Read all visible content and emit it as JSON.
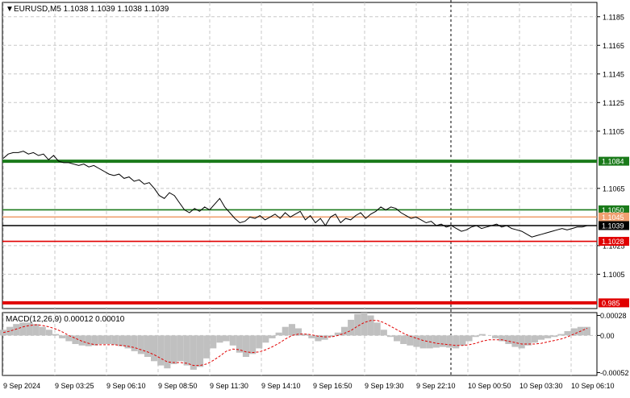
{
  "header": {
    "symbol_line": "EURUSD,M5  1.1038 1.1039 1.1038 1.1039"
  },
  "macd_header": "MACD(12,26,9) 0.00012 0.00010",
  "colors": {
    "background": "#ffffff",
    "grid": "#c8c8c8",
    "price_line": "#000000",
    "green_level": "#1a7a1a",
    "red_level": "#e00000",
    "macd_hist": "#c0c0c0",
    "macd_signal": "#e00000",
    "orange_level": "#f0a070"
  },
  "chart_data": [
    {
      "type": "line",
      "title": "EURUSD,M5",
      "y_ticks": [
        "1.1185",
        "1.1165",
        "1.1145",
        "1.1125",
        "1.1105",
        "1.1065",
        "1.1025",
        "1.1005"
      ],
      "x_ticks": [
        "9 Sep 2024",
        "9 Sep 03:25",
        "9 Sep 06:10",
        "9 Sep 08:50",
        "9 Sep 11:30",
        "9 Sep 14:10",
        "9 Sep 16:50",
        "9 Sep 19:30",
        "9 Sep 22:10",
        "10 Sep 00:50",
        "10 Sep 03:30",
        "10 Sep 06:10"
      ],
      "ylim": [
        1.0981,
        1.1195
      ],
      "levels": [
        {
          "label": "1.1084",
          "value": 1.1084,
          "color": "#1a7a1a",
          "thick": true
        },
        {
          "label": "1.1050",
          "value": 1.105,
          "color": "#1a7a1a",
          "thick": false
        },
        {
          "label": "1.1045",
          "value": 1.1045,
          "color": "#f0a070",
          "thick": false
        },
        {
          "label": "1.1039",
          "value": 1.1039,
          "color": "#000000",
          "thick": false
        },
        {
          "label": "1.1028",
          "value": 1.1028,
          "color": "#e00000",
          "thick": false
        },
        {
          "label": "0.985",
          "value": 1.0985,
          "color": "#e00000",
          "thick": true
        }
      ],
      "series": [
        {
          "values": [
            1.1086,
            1.1089,
            1.109,
            1.109,
            1.1091,
            1.1089,
            1.109,
            1.1088,
            1.1089,
            1.1085,
            1.1088,
            1.1084,
            1.1083,
            1.1083,
            1.1082,
            1.1081,
            1.1082,
            1.108,
            1.1081,
            1.1079,
            1.1077,
            1.1075,
            1.1074,
            1.1075,
            1.1072,
            1.1073,
            1.107,
            1.1071,
            1.1068,
            1.1069,
            1.1065,
            1.106,
            1.1058,
            1.1062,
            1.106,
            1.1055,
            1.105,
            1.1048,
            1.1051,
            1.1049,
            1.1052,
            1.105,
            1.1054,
            1.1058,
            1.1052,
            1.1048,
            1.1044,
            1.1041,
            1.1042,
            1.1045,
            1.1044,
            1.1046,
            1.1043,
            1.1045,
            1.1047,
            1.1044,
            1.1048,
            1.1045,
            1.1047,
            1.1049,
            1.1043,
            1.1046,
            1.1041,
            1.1044,
            1.1039,
            1.1045,
            1.1047,
            1.1041,
            1.1044,
            1.1043,
            1.1046,
            1.1048,
            1.1044,
            1.1047,
            1.1049,
            1.1052,
            1.105,
            1.1052,
            1.1051,
            1.1048,
            1.1046,
            1.1044,
            1.1045,
            1.1043,
            1.1041,
            1.1042,
            1.1039,
            1.104,
            1.1038,
            1.1039,
            1.1037,
            1.1035,
            1.1036,
            1.1038,
            1.1039,
            1.1037,
            1.1038,
            1.1039,
            1.104,
            1.1038,
            1.1039,
            1.1037,
            1.1036,
            1.1035,
            1.1033,
            1.1031,
            1.1032,
            1.1033,
            1.1034,
            1.1035,
            1.1036,
            1.1037,
            1.1036,
            1.1037,
            1.1038,
            1.1038,
            1.1039
          ]
        }
      ]
    },
    {
      "type": "bar",
      "title": "MACD(12,26,9)",
      "y_ticks": [
        "0.00028",
        "0.00",
        "-0.00052"
      ],
      "ylim": [
        -0.00056,
        0.00032
      ],
      "series": [
        {
          "name": "MACD",
          "values": [
            8e-05,
            0.00012,
            0.00016,
            0.00018,
            0.00018,
            0.00016,
            0.00012,
            8e-05,
            2e-05,
            -4e-05,
            -8e-05,
            -0.00012,
            -0.00014,
            -0.00015,
            -0.00014,
            -0.00012,
            -0.00012,
            -0.00013,
            -0.00015,
            -0.00018,
            -0.00022,
            -0.00026,
            -0.0003,
            -0.00036,
            -0.00042,
            -0.00046,
            -0.0004,
            -0.00036,
            -0.00042,
            -0.00048,
            -0.00044,
            -0.00032,
            -0.00018,
            -0.0001,
            -8e-05,
            -0.00014,
            -0.00024,
            -0.0003,
            -0.00026,
            -0.00018,
            -0.0001,
            -4e-05,
            4e-05,
            0.00012,
            0.00016,
            0.0001,
            2e-05,
            -4e-05,
            -8e-05,
            -6e-05,
            -2e-05,
            4e-05,
            0.00012,
            0.00022,
            0.0003,
            0.00032,
            0.00028,
            0.00018,
            8e-05,
            -2e-05,
            -8e-05,
            -0.00012,
            -0.00014,
            -0.00016,
            -0.00018,
            -0.00018,
            -0.00017,
            -0.00016,
            -0.00017,
            -0.00018,
            -0.00014,
            -8e-05,
            -2e-05,
            2e-05,
            0.0,
            -4e-05,
            -8e-05,
            -0.00012,
            -0.00016,
            -0.00018,
            -0.00014,
            -0.0001,
            -6e-05,
            -4e-05,
            -2e-05,
            2e-05,
            6e-05,
            0.0001,
            0.00012,
            0.00012
          ]
        },
        {
          "name": "Signal",
          "values": [
            4e-05,
            6e-05,
            9e-05,
            0.00012,
            0.00014,
            0.00015,
            0.00014,
            0.00012,
            9e-05,
            5e-05,
            0.0,
            -4e-05,
            -8e-05,
            -0.00011,
            -0.00013,
            -0.00013,
            -0.00013,
            -0.00013,
            -0.00014,
            -0.00015,
            -0.00017,
            -0.0002,
            -0.00023,
            -0.00027,
            -0.00032,
            -0.00037,
            -0.00038,
            -0.00038,
            -0.00039,
            -0.00042,
            -0.00042,
            -0.0004,
            -0.00035,
            -0.00029,
            -0.00022,
            -0.00019,
            -0.0002,
            -0.00023,
            -0.00024,
            -0.00023,
            -0.0002,
            -0.00016,
            -0.00011,
            -5e-05,
            0.0,
            2e-05,
            2e-05,
            1e-05,
            -1e-05,
            -2e-05,
            -2e-05,
            0.0,
            3e-05,
            7e-05,
            0.00013,
            0.00018,
            0.00021,
            0.00021,
            0.00018,
            0.00013,
            8e-05,
            3e-05,
            -1e-05,
            -4e-05,
            -7e-05,
            -9e-05,
            -0.00011,
            -0.00012,
            -0.00013,
            -0.00014,
            -0.00014,
            -0.00013,
            -0.00011,
            -8e-05,
            -6e-05,
            -6e-05,
            -6e-05,
            -8e-05,
            -0.0001,
            -0.00012,
            -0.00012,
            -0.00012,
            -0.00011,
            -9e-05,
            -7e-05,
            -5e-05,
            -2e-05,
            2e-05,
            6e-05,
            0.0001
          ]
        }
      ]
    }
  ]
}
